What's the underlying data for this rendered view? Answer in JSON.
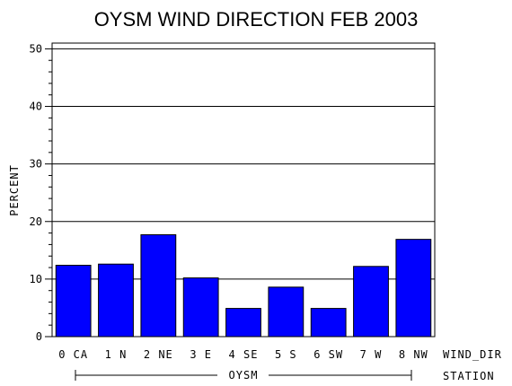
{
  "chart_data": {
    "type": "bar",
    "title": "OYSM WIND DIRECTION FEB 2003",
    "ylabel": "PERCENT",
    "xlabel": "WIND_DIR",
    "group_axis_label": "STATION",
    "group_label": "OYSM",
    "categories": [
      "0 CA",
      "1 N",
      "2 NE",
      "3 E",
      "4 SE",
      "5 S",
      "6 SW",
      "7 W",
      "8 NW"
    ],
    "values": [
      12.4,
      12.6,
      17.7,
      10.2,
      4.9,
      8.6,
      4.9,
      12.2,
      16.9
    ],
    "ylim": [
      0,
      51
    ],
    "yticks": [
      0,
      10,
      20,
      30,
      40,
      50
    ],
    "grid": true,
    "bar_color": "#0000ff"
  }
}
